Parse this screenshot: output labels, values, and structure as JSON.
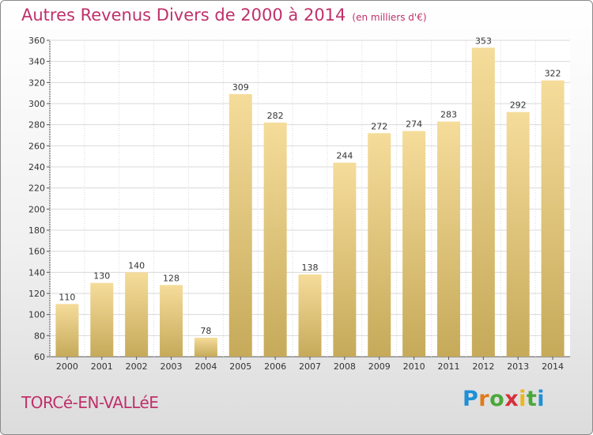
{
  "header": {
    "title": "Autres Revenus Divers de 2000 à 2014",
    "unit": "(en milliers d'€)"
  },
  "footer": {
    "commune": "TORCé-EN-VALLéE",
    "logo": "Proxiti"
  },
  "colors": {
    "title": "#c0306a",
    "bar_light": "#f5dc9a",
    "bar_dark": "#c6aa5a",
    "grid": "#d9d9d9"
  },
  "chart_data": {
    "type": "bar",
    "title": "Autres Revenus Divers de 2000 à 2014",
    "subtitle": "(en milliers d'€)",
    "xlabel": "",
    "ylabel": "",
    "categories": [
      "2000",
      "2001",
      "2002",
      "2003",
      "2004",
      "2005",
      "2006",
      "2007",
      "2008",
      "2009",
      "2010",
      "2011",
      "2012",
      "2013",
      "2014"
    ],
    "values": [
      110,
      130,
      140,
      128,
      78,
      309,
      282,
      138,
      244,
      272,
      274,
      283,
      353,
      292,
      322
    ],
    "data_labels": [
      "110",
      "130",
      "140",
      "128",
      "78",
      "309",
      "282",
      "138",
      "244",
      "272",
      "274",
      "283",
      "353",
      "292",
      "322"
    ],
    "ylim": [
      60,
      360
    ],
    "yticks": [
      "60",
      "80",
      "100",
      "120",
      "140",
      "160",
      "180",
      "200",
      "220",
      "240",
      "260",
      "280",
      "300",
      "320",
      "340",
      "360"
    ],
    "grid": true,
    "legend": "none"
  }
}
